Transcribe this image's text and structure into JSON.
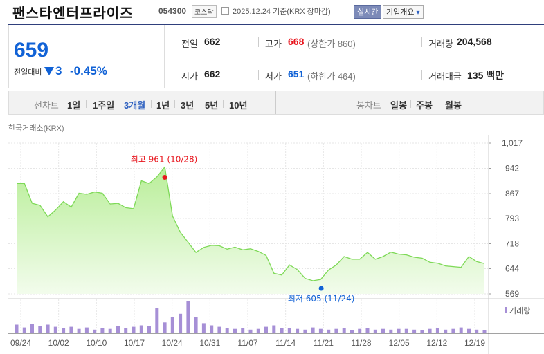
{
  "header": {
    "company_name": "팬스타엔터프라이즈",
    "stock_code": "054300",
    "market_badge": "코스닥",
    "date_info": "2025.12.24  기준(KRX 장마감)",
    "realtime_button": "실시간",
    "company_overview_button": "기업개요",
    "company_overview_arrow": "▾"
  },
  "summary": {
    "price": "659",
    "change_label": "전일대비",
    "change_value": "3",
    "change_pct": "-0.45%",
    "prev_close_label": "전일",
    "prev_close": "662",
    "high_label": "고가",
    "high": "668",
    "upper_limit": "(상한가 860)",
    "volume_label": "거래량",
    "volume": "204,568",
    "open_label": "시가",
    "open": "662",
    "low_label": "저가",
    "low": "651",
    "lower_limit": "(하한가 464)",
    "value_label": "거래대금",
    "value": "135 백만"
  },
  "tabs": {
    "line_label": "선차트",
    "line_tabs": [
      "1일",
      "1주일",
      "3개월",
      "1년",
      "3년",
      "5년",
      "10년"
    ],
    "selected": "3개월",
    "candle_label": "봉차트",
    "candle_tabs": [
      "일봉",
      "주봉",
      "월봉"
    ]
  },
  "colors": {
    "accent": "#2f3f7c",
    "down": "#1162d6",
    "up": "#e8161e",
    "line": "#7ed957",
    "area": "#d8f5c5",
    "volume_bar": "#a68fd6"
  },
  "chart_data": {
    "type": "area",
    "source": "한국거래소(KRX)",
    "y_ticks": [
      "1,017",
      "942",
      "867",
      "793",
      "718",
      "644",
      "569"
    ],
    "ylim": [
      569,
      1017
    ],
    "x_ticks": [
      "09/24",
      "10/02",
      "10/10",
      "10/17",
      "10/24",
      "10/31",
      "11/07",
      "11/14",
      "11/21",
      "11/28",
      "12/05",
      "12/12",
      "12/19"
    ],
    "high_annotation": "최고 961 (10/28)",
    "low_annotation": "최저 605 (11/24)",
    "volume_legend": "거래량",
    "grid": true,
    "series": [
      {
        "values": [
          897,
          897,
          838,
          832,
          798,
          818,
          843,
          827,
          868,
          865,
          872,
          868,
          836,
          838,
          825,
          822,
          905,
          897,
          917,
          946,
          800,
          752,
          722,
          692,
          707,
          713,
          712,
          702,
          708,
          700,
          703,
          695,
          683,
          630,
          625,
          655,
          641,
          615,
          608,
          612,
          640,
          655,
          680,
          672,
          672,
          692,
          672,
          680,
          693,
          687,
          685,
          678,
          675,
          663,
          660,
          652,
          650,
          648,
          680,
          665,
          659
        ]
      },
      {
        "name": "거래량",
        "values": [
          12,
          8,
          13,
          10,
          12,
          9,
          7,
          9,
          6,
          8,
          5,
          7,
          6,
          10,
          7,
          9,
          11,
          10,
          35,
          15,
          22,
          27,
          45,
          22,
          14,
          11,
          9,
          7,
          6,
          7,
          5,
          6,
          9,
          11,
          7,
          7,
          6,
          5,
          8,
          6,
          5,
          6,
          7,
          4,
          6,
          7,
          5,
          6,
          5,
          6,
          6,
          5,
          4,
          6,
          7,
          5,
          6,
          8,
          6,
          5,
          4
        ]
      }
    ]
  }
}
